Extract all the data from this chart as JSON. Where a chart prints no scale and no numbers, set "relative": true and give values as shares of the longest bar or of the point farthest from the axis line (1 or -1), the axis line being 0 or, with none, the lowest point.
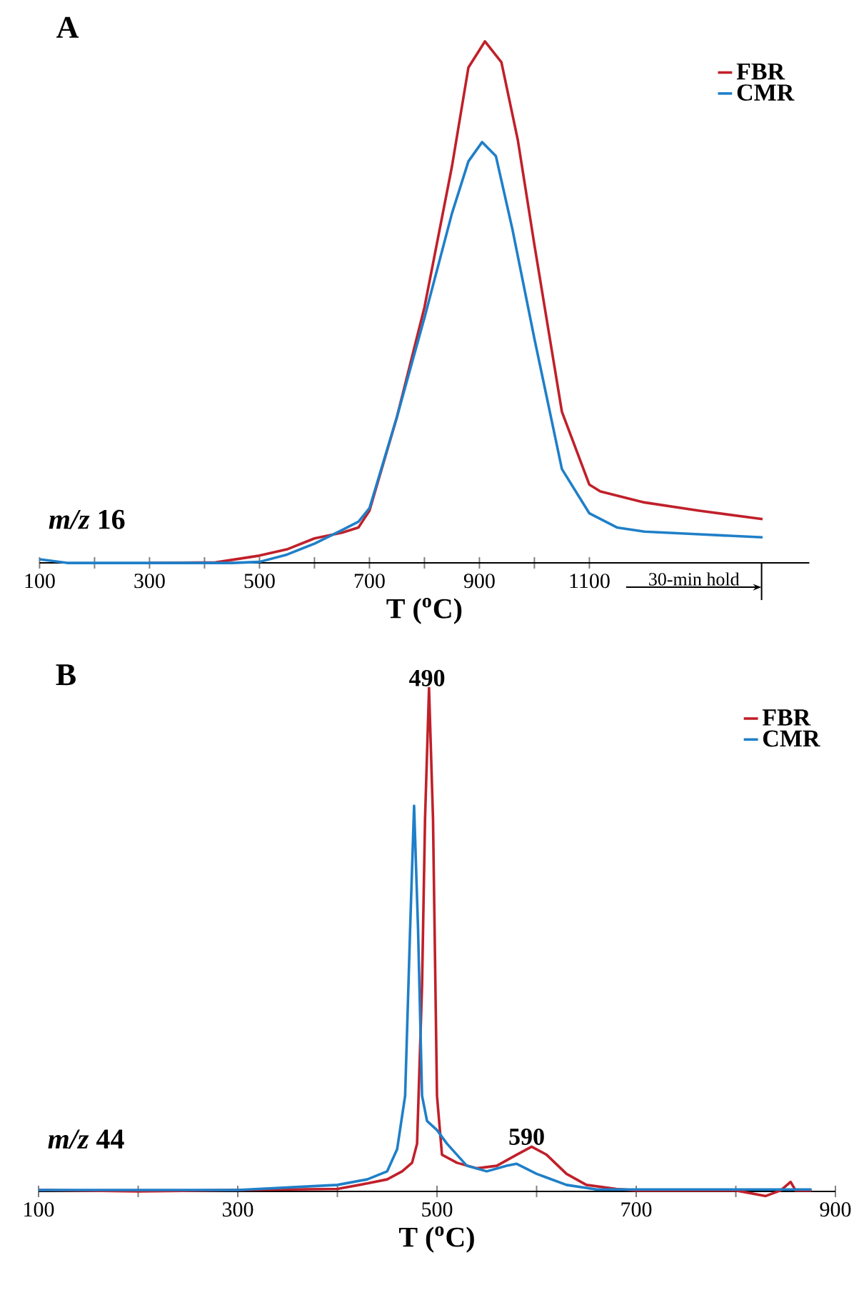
{
  "chart_data": [
    {
      "type": "line",
      "title": "A",
      "xlabel": "T ($^{o}$C)",
      "relative": true,
      "legend": "top right",
      "marker": "none",
      "line_style": "solid",
      "xlim": [
        100,
        1500
      ],
      "xticks": [
        100,
        {
          "value": 200,
          "label": null
        },
        300,
        {
          "value": 400,
          "label": null
        },
        500,
        {
          "value": 600,
          "label": null
        },
        700,
        {
          "value": 800,
          "label": null
        },
        900,
        {
          "value": 1000,
          "label": null
        },
        1100
      ],
      "annotations": [
        "*m/z*  16",
        "30-min hold"
      ],
      "series": [
        {
          "name": "FBR",
          "color": "#c0202a",
          "x": [
            300,
            420,
            500,
            550,
            600,
            650,
            680,
            700,
            750,
            800,
            850,
            880,
            910,
            940,
            970,
            1000,
            1050,
            1100,
            1120,
            1200,
            1300,
            1415
          ],
          "values": [
            0,
            0.001,
            0.014,
            0.026,
            0.047,
            0.058,
            0.068,
            0.1,
            0.28,
            0.49,
            0.76,
            0.95,
            1,
            0.96,
            0.81,
            0.61,
            0.29,
            0.15,
            0.137,
            0.116,
            0.1,
            0.084
          ]
        },
        {
          "name": "CMR",
          "color": "#1f7fc8",
          "x": [
            100,
            150,
            300,
            450,
            500,
            550,
            600,
            650,
            680,
            700,
            750,
            800,
            850,
            880,
            905,
            930,
            960,
            1000,
            1050,
            1100,
            1150,
            1200,
            1300,
            1415
          ],
          "values": [
            0.007,
            0,
            0,
            0,
            0.002,
            0.016,
            0.037,
            0.063,
            0.079,
            0.105,
            0.28,
            0.47,
            0.67,
            0.77,
            0.807,
            0.78,
            0.64,
            0.43,
            0.18,
            0.095,
            0.068,
            0.06,
            0.055,
            0.049
          ]
        }
      ]
    },
    {
      "type": "line",
      "title": "B",
      "xlabel": "T ($^{o}$C)",
      "relative": true,
      "legend": "top right",
      "marker": "none",
      "line_style": "solid",
      "xlim": [
        100,
        900
      ],
      "xticks": [
        100,
        {
          "value": 200,
          "label": null
        },
        300,
        {
          "value": 400,
          "label": null
        },
        500,
        {
          "value": 600,
          "label": null
        },
        700,
        {
          "value": 800,
          "label": null
        },
        900
      ],
      "annotations": [
        "*m/z*  44",
        {
          "text": "490",
          "x": 490,
          "y": 1
        },
        {
          "text": "590",
          "x": 590,
          "y": 0.089
        }
      ],
      "series": [
        {
          "name": "FBR",
          "color": "#c0202a",
          "x": [
            100,
            200,
            300,
            400,
            430,
            450,
            465,
            475,
            480,
            485,
            488,
            492,
            496,
            500,
            505,
            520,
            540,
            560,
            580,
            595,
            610,
            630,
            650,
            680,
            700,
            800,
            830,
            845,
            855,
            860,
            876
          ],
          "values": [
            0.003,
            0,
            0.003,
            0.005,
            0.016,
            0.024,
            0.04,
            0.057,
            0.095,
            0.41,
            0.74,
            1,
            0.74,
            0.19,
            0.073,
            0.057,
            0.046,
            0.051,
            0.073,
            0.089,
            0.073,
            0.035,
            0.013,
            0.005,
            0.002,
            0.002,
            -0.009,
            0.002,
            0.019,
            0.002,
            0.002
          ]
        },
        {
          "name": "CMR",
          "color": "#1f7fc8",
          "x": [
            100,
            200,
            300,
            400,
            430,
            450,
            460,
            468,
            473,
            477,
            481,
            485,
            490,
            500,
            510,
            530,
            550,
            570,
            580,
            600,
            630,
            660,
            876
          ],
          "values": [
            0.003,
            0.003,
            0.003,
            0.013,
            0.024,
            0.04,
            0.084,
            0.19,
            0.52,
            0.766,
            0.52,
            0.19,
            0.14,
            0.122,
            0.095,
            0.051,
            0.04,
            0.051,
            0.055,
            0.035,
            0.013,
            0.004,
            0.004
          ]
        }
      ]
    }
  ]
}
